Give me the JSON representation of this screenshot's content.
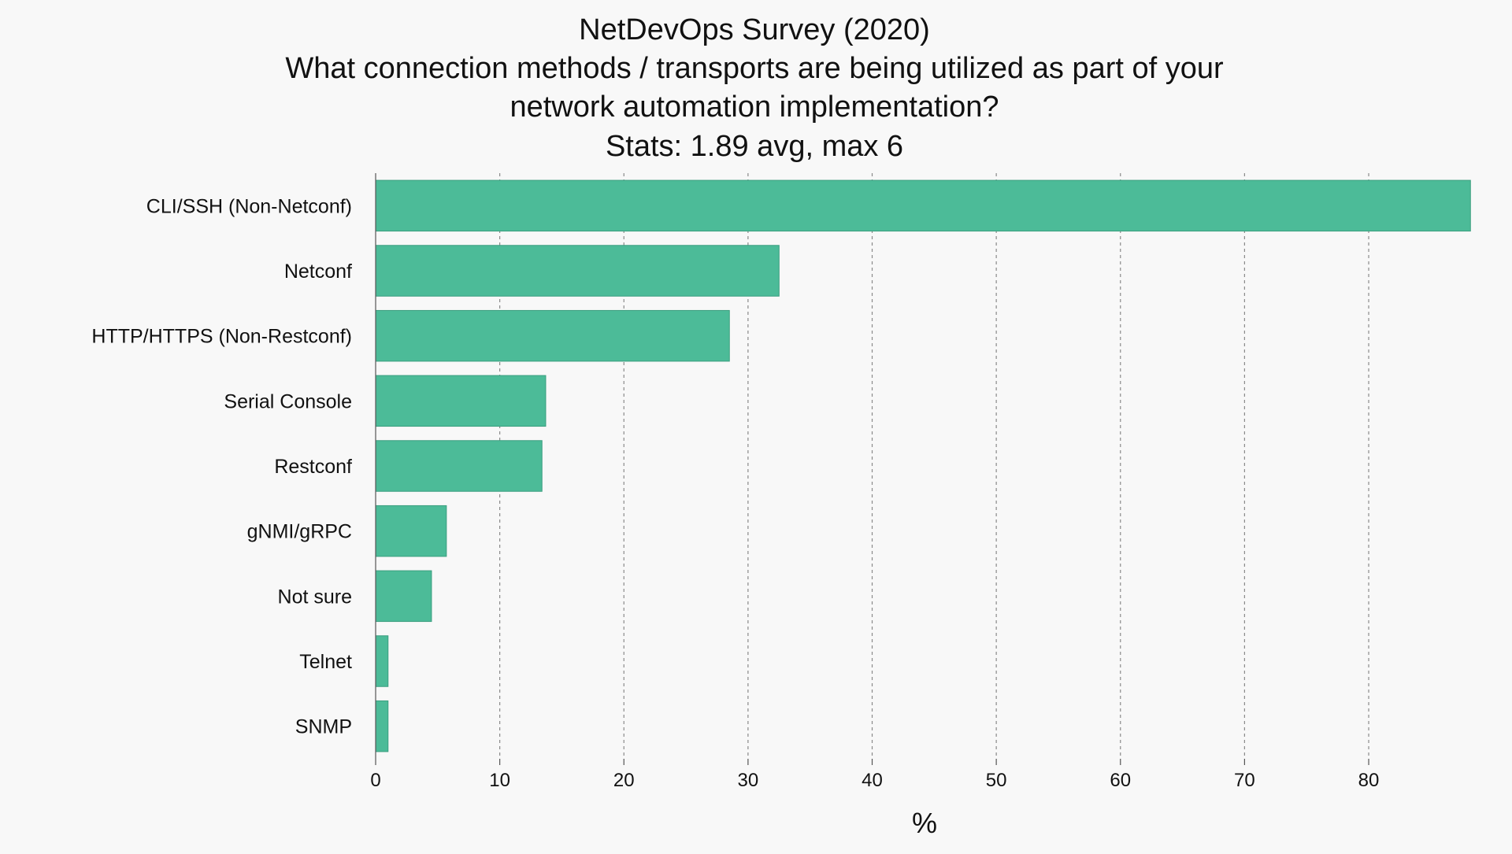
{
  "chart_data": {
    "type": "bar",
    "orientation": "horizontal",
    "title_lines": [
      "NetDevOps Survey (2020)",
      "What connection methods / transports are being utilized as part of your",
      "network automation implementation?",
      "Stats: 1.89 avg, max 6"
    ],
    "xlabel": "%",
    "ylabel": "",
    "categories": [
      "CLI/SSH (Non-Netconf)",
      "Netconf",
      "HTTP/HTTPS (Non-Restconf)",
      "Serial Console",
      "Restconf",
      "gNMI/gRPC",
      "Not sure",
      "Telnet",
      "SNMP"
    ],
    "values": [
      88.2,
      32.5,
      28.5,
      13.7,
      13.4,
      5.7,
      4.5,
      1.0,
      1.0
    ],
    "xlim": [
      0,
      88.5
    ],
    "xticks": [
      0,
      10,
      20,
      30,
      40,
      50,
      60,
      70,
      80
    ],
    "grid": true,
    "bar_color": "#4cbb98",
    "bar_edge_color": "#3a9e7f"
  }
}
